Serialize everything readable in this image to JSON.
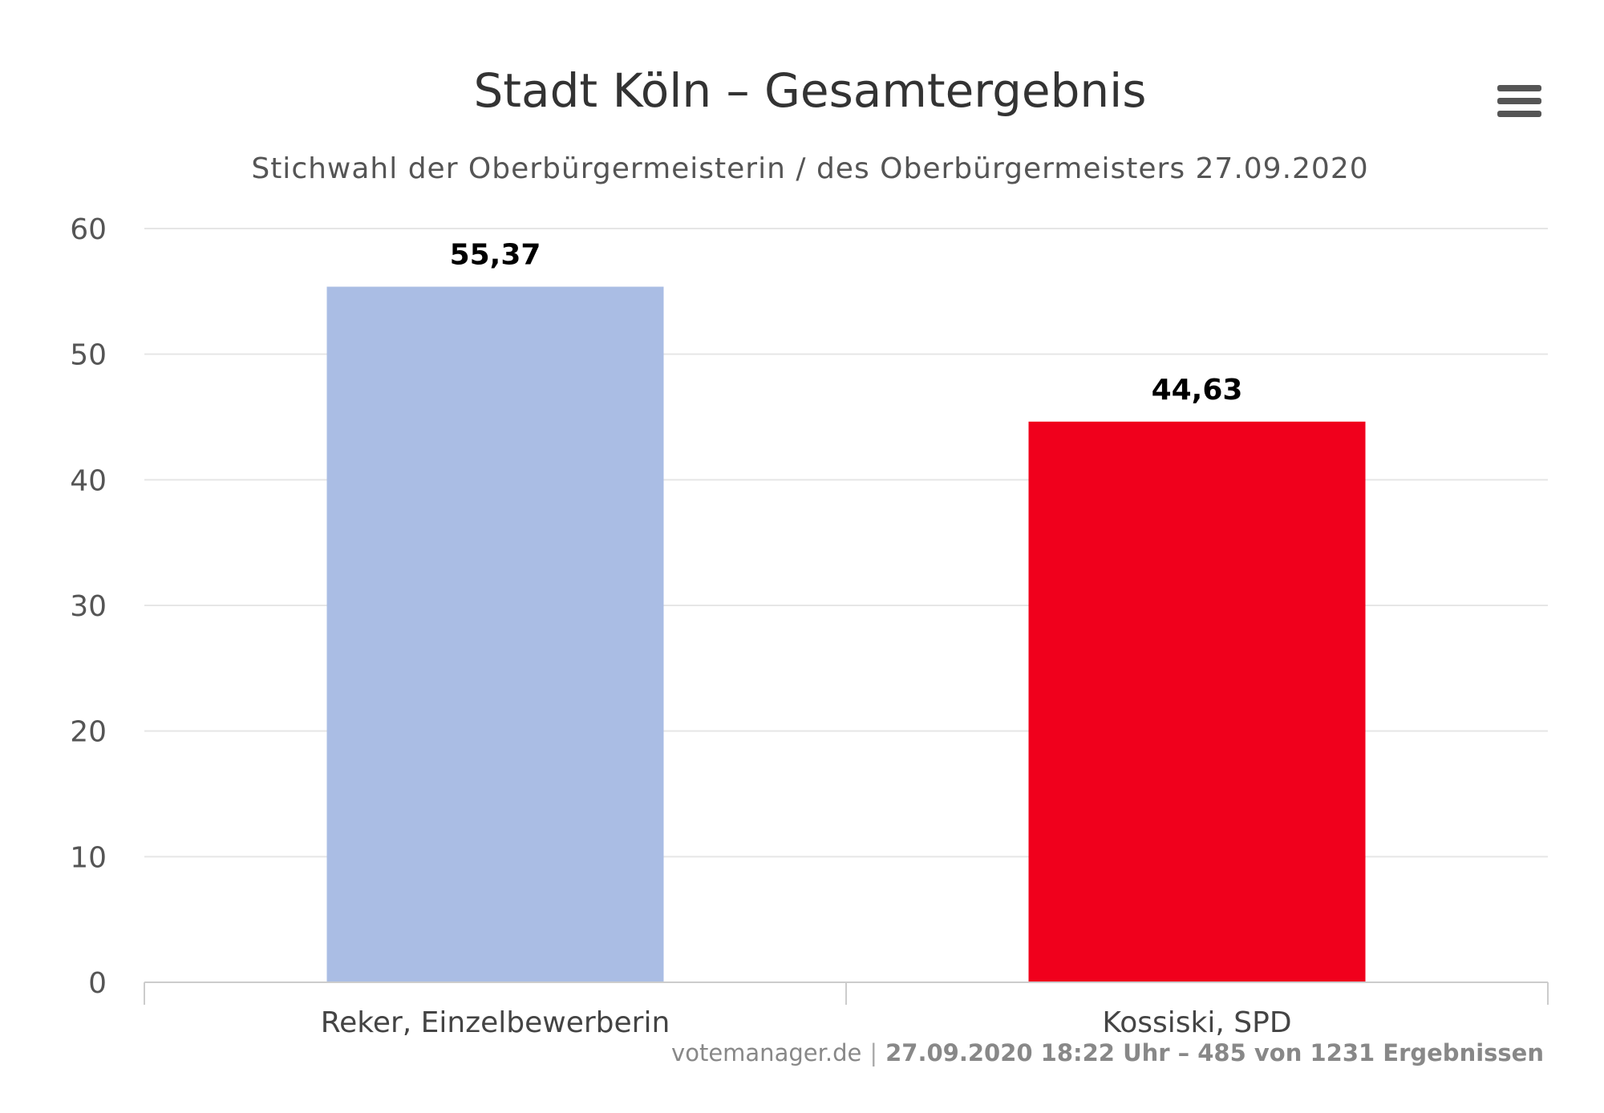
{
  "chart_data": {
    "type": "bar",
    "title": "Stadt Köln – Gesamtergebnis",
    "subtitle": "Stichwahl der Oberbürgermeisterin / des Oberbürgermeisters 27.09.2020",
    "categories": [
      "Reker, Einzelbewerberin",
      "Kossiski, SPD"
    ],
    "values": [
      55.37,
      44.63
    ],
    "value_labels": [
      "55,37",
      "44,63"
    ],
    "colors": [
      "#aabde4",
      "#f0001c"
    ],
    "ylim": [
      0,
      60
    ],
    "yticks": [
      0,
      10,
      20,
      30,
      40,
      50,
      60
    ],
    "xlabel": "",
    "ylabel": "",
    "grid": true,
    "legend": "none"
  },
  "menu": {
    "icon": "hamburger-menu-icon"
  },
  "credits": {
    "link": "votemanager.de",
    "separator": "|",
    "info": "27.09.2020 18:22 Uhr – 485 von 1231 Ergebnissen"
  }
}
